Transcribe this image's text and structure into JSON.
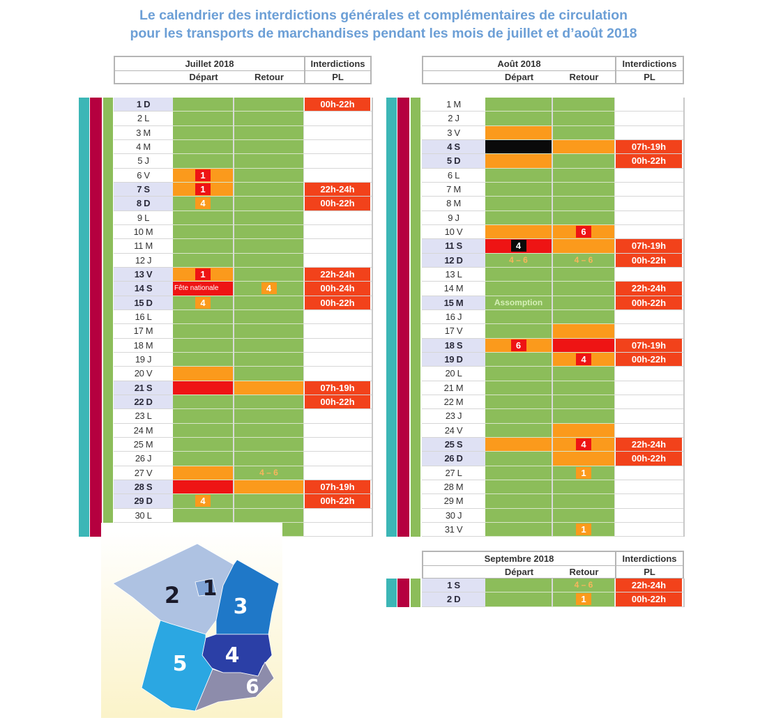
{
  "title": {
    "line1": "Le calendrier des interdictions générales et complémentaires de circulation",
    "line2": "pour les transports de marchandises pendant les mois de juillet et d’août 2018"
  },
  "colors": {
    "green": "#8cbd5a",
    "orange": "#fb9a1c",
    "red": "#ee1414",
    "black": "#0a0a0a",
    "pl": "#f2421b",
    "stripe_teal": "#3cb6b6",
    "stripe_crimson": "#b5003f",
    "stripe_green": "#8cbd5a",
    "weekend": "#dfe1f4",
    "range_text": "#f9b55c",
    "holiday_text": "#d6f0b8"
  },
  "headers": {
    "depart": "Départ",
    "retour": "Retour",
    "interdictions": "Interdictions",
    "pl": "PL"
  },
  "months": [
    {
      "name": "Juillet 2018",
      "days": [
        {
          "day": "1 D",
          "hl": true,
          "d": {
            "bg": "green"
          },
          "r": {
            "bg": "green"
          },
          "pl": "00h-22h"
        },
        {
          "day": "2 L",
          "d": {
            "bg": "green"
          },
          "r": {
            "bg": "green"
          }
        },
        {
          "day": "3 M",
          "d": {
            "bg": "green"
          },
          "r": {
            "bg": "green"
          }
        },
        {
          "day": "4 M",
          "d": {
            "bg": "green"
          },
          "r": {
            "bg": "green"
          }
        },
        {
          "day": "5 J",
          "d": {
            "bg": "green"
          },
          "r": {
            "bg": "green"
          }
        },
        {
          "day": "6 V",
          "d": {
            "bg": "orange",
            "badge": "1",
            "badge_bg": "red"
          },
          "r": {
            "bg": "green"
          }
        },
        {
          "day": "7 S",
          "hl": true,
          "d": {
            "bg": "orange",
            "badge": "1",
            "badge_bg": "red"
          },
          "r": {
            "bg": "green"
          },
          "pl": "22h-24h"
        },
        {
          "day": "8 D",
          "hl": true,
          "d": {
            "bg": "green",
            "badge": "4",
            "badge_bg": "orange"
          },
          "r": {
            "bg": "green"
          },
          "pl": "00h-22h"
        },
        {
          "day": "9 L",
          "d": {
            "bg": "green"
          },
          "r": {
            "bg": "green"
          }
        },
        {
          "day": "10 M",
          "d": {
            "bg": "green"
          },
          "r": {
            "bg": "green"
          }
        },
        {
          "day": "11 M",
          "d": {
            "bg": "green"
          },
          "r": {
            "bg": "green"
          }
        },
        {
          "day": "12 J",
          "d": {
            "bg": "green"
          },
          "r": {
            "bg": "green"
          }
        },
        {
          "day": "13 V",
          "hl": true,
          "d": {
            "bg": "orange",
            "badge": "1",
            "badge_bg": "red"
          },
          "r": {
            "bg": "green"
          },
          "pl": "22h-24h"
        },
        {
          "day": "14 S",
          "hl": true,
          "d": {
            "bg": "red",
            "holiday": "Fête nationale"
          },
          "r": {
            "bg": "green",
            "badge": "4",
            "badge_bg": "orange"
          },
          "pl": "00h-24h"
        },
        {
          "day": "15 D",
          "hl": true,
          "d": {
            "bg": "green",
            "badge": "4",
            "badge_bg": "orange"
          },
          "r": {
            "bg": "green"
          },
          "pl": "00h-22h"
        },
        {
          "day": "16 L",
          "d": {
            "bg": "green"
          },
          "r": {
            "bg": "green"
          }
        },
        {
          "day": "17 M",
          "d": {
            "bg": "green"
          },
          "r": {
            "bg": "green"
          }
        },
        {
          "day": "18 M",
          "d": {
            "bg": "green"
          },
          "r": {
            "bg": "green"
          }
        },
        {
          "day": "19 J",
          "d": {
            "bg": "green"
          },
          "r": {
            "bg": "green"
          }
        },
        {
          "day": "20 V",
          "d": {
            "bg": "orange"
          },
          "r": {
            "bg": "green"
          }
        },
        {
          "day": "21 S",
          "hl": true,
          "d": {
            "bg": "red"
          },
          "r": {
            "bg": "orange"
          },
          "pl": "07h-19h"
        },
        {
          "day": "22 D",
          "hl": true,
          "d": {
            "bg": "green"
          },
          "r": {
            "bg": "green"
          },
          "pl": "00h-22h"
        },
        {
          "day": "23 L",
          "d": {
            "bg": "green"
          },
          "r": {
            "bg": "green"
          }
        },
        {
          "day": "24 M",
          "d": {
            "bg": "green"
          },
          "r": {
            "bg": "green"
          }
        },
        {
          "day": "25 M",
          "d": {
            "bg": "green"
          },
          "r": {
            "bg": "green"
          }
        },
        {
          "day": "26 J",
          "d": {
            "bg": "green"
          },
          "r": {
            "bg": "green"
          }
        },
        {
          "day": "27 V",
          "d": {
            "bg": "orange"
          },
          "r": {
            "bg": "green",
            "text": "4 – 6"
          }
        },
        {
          "day": "28 S",
          "hl": true,
          "d": {
            "bg": "red"
          },
          "r": {
            "bg": "orange"
          },
          "pl": "07h-19h"
        },
        {
          "day": "29 D",
          "hl": true,
          "d": {
            "bg": "green",
            "badge": "4",
            "badge_bg": "orange"
          },
          "r": {
            "bg": "green"
          },
          "pl": "00h-22h"
        },
        {
          "day": "30 L",
          "d": {
            "bg": "green"
          },
          "r": {
            "bg": "green"
          }
        }
      ]
    },
    {
      "name": "Août 2018",
      "days": [
        {
          "day": "1 M",
          "d": {
            "bg": "green"
          },
          "r": {
            "bg": "green"
          }
        },
        {
          "day": "2 J",
          "d": {
            "bg": "green"
          },
          "r": {
            "bg": "green"
          }
        },
        {
          "day": "3 V",
          "d": {
            "bg": "orange"
          },
          "r": {
            "bg": "green"
          }
        },
        {
          "day": "4 S",
          "hl": true,
          "d": {
            "bg": "black"
          },
          "r": {
            "bg": "orange"
          },
          "pl": "07h-19h"
        },
        {
          "day": "5 D",
          "hl": true,
          "d": {
            "bg": "orange"
          },
          "r": {
            "bg": "green"
          },
          "pl": "00h-22h"
        },
        {
          "day": "6 L",
          "d": {
            "bg": "green"
          },
          "r": {
            "bg": "green"
          }
        },
        {
          "day": "7 M",
          "d": {
            "bg": "green"
          },
          "r": {
            "bg": "green"
          }
        },
        {
          "day": "8 M",
          "d": {
            "bg": "green"
          },
          "r": {
            "bg": "green"
          }
        },
        {
          "day": "9 J",
          "d": {
            "bg": "green"
          },
          "r": {
            "bg": "green"
          }
        },
        {
          "day": "10 V",
          "d": {
            "bg": "orange"
          },
          "r": {
            "bg": "orange",
            "badge": "6",
            "badge_bg": "red"
          }
        },
        {
          "day": "11 S",
          "hl": true,
          "d": {
            "bg": "red",
            "badge": "4",
            "badge_bg": "black"
          },
          "r": {
            "bg": "orange"
          },
          "pl": "07h-19h"
        },
        {
          "day": "12 D",
          "hl": true,
          "d": {
            "bg": "green",
            "text": "4 – 6"
          },
          "r": {
            "bg": "green",
            "text": "4 – 6"
          },
          "pl": "00h-22h"
        },
        {
          "day": "13 L",
          "d": {
            "bg": "green"
          },
          "r": {
            "bg": "green"
          }
        },
        {
          "day": "14 M",
          "d": {
            "bg": "green"
          },
          "r": {
            "bg": "green"
          },
          "pl": "22h-24h"
        },
        {
          "day": "15 M",
          "hl": true,
          "d": {
            "bg": "green",
            "holiday_green": "Assomption"
          },
          "r": {
            "bg": "green"
          },
          "pl": "00h-22h"
        },
        {
          "day": "16 J",
          "d": {
            "bg": "green"
          },
          "r": {
            "bg": "green"
          }
        },
        {
          "day": "17 V",
          "d": {
            "bg": "green"
          },
          "r": {
            "bg": "orange"
          }
        },
        {
          "day": "18 S",
          "hl": true,
          "d": {
            "bg": "orange",
            "badge": "6",
            "badge_bg": "red"
          },
          "r": {
            "bg": "red"
          },
          "pl": "07h-19h"
        },
        {
          "day": "19 D",
          "hl": true,
          "d": {
            "bg": "green"
          },
          "r": {
            "bg": "orange",
            "badge": "4",
            "badge_bg": "red"
          },
          "pl": "00h-22h"
        },
        {
          "day": "20 L",
          "d": {
            "bg": "green"
          },
          "r": {
            "bg": "green"
          }
        },
        {
          "day": "21 M",
          "d": {
            "bg": "green"
          },
          "r": {
            "bg": "green"
          }
        },
        {
          "day": "22 M",
          "d": {
            "bg": "green"
          },
          "r": {
            "bg": "green"
          }
        },
        {
          "day": "23 J",
          "d": {
            "bg": "green"
          },
          "r": {
            "bg": "green"
          }
        },
        {
          "day": "24 V",
          "d": {
            "bg": "green"
          },
          "r": {
            "bg": "orange"
          }
        },
        {
          "day": "25 S",
          "hl": true,
          "d": {
            "bg": "orange"
          },
          "r": {
            "bg": "orange",
            "badge": "4",
            "badge_bg": "red"
          },
          "pl": "22h-24h"
        },
        {
          "day": "26 D",
          "hl": true,
          "d": {
            "bg": "green"
          },
          "r": {
            "bg": "orange"
          },
          "pl": "00h-22h"
        },
        {
          "day": "27 L",
          "d": {
            "bg": "green"
          },
          "r": {
            "bg": "green",
            "badge": "1",
            "badge_bg": "orange"
          }
        },
        {
          "day": "28 M",
          "d": {
            "bg": "green"
          },
          "r": {
            "bg": "green"
          }
        },
        {
          "day": "29 M",
          "d": {
            "bg": "green"
          },
          "r": {
            "bg": "green"
          }
        },
        {
          "day": "30 J",
          "d": {
            "bg": "green"
          },
          "r": {
            "bg": "green"
          }
        },
        {
          "day": "31 V",
          "d": {
            "bg": "green"
          },
          "r": {
            "bg": "green",
            "badge": "1",
            "badge_bg": "orange"
          }
        }
      ]
    },
    {
      "name": "Septembre 2018",
      "days": [
        {
          "day": "1 S",
          "hl": true,
          "d": {
            "bg": "green"
          },
          "r": {
            "bg": "green",
            "text": "4 – 6"
          },
          "pl": "22h-24h"
        },
        {
          "day": "2 D",
          "hl": true,
          "d": {
            "bg": "green"
          },
          "r": {
            "bg": "green",
            "badge": "1",
            "badge_bg": "orange"
          },
          "pl": "00h-22h"
        }
      ]
    }
  ],
  "map": {
    "zones": [
      "1",
      "2",
      "3",
      "4",
      "5",
      "6"
    ],
    "zone_colors": {
      "1": "#7fa3d6",
      "2": "#aec2e2",
      "3": "#1f78c8",
      "4": "#2b3fa6",
      "5": "#2ba7e2",
      "6": "#8d8cab"
    },
    "background": "#fbf3c9"
  }
}
